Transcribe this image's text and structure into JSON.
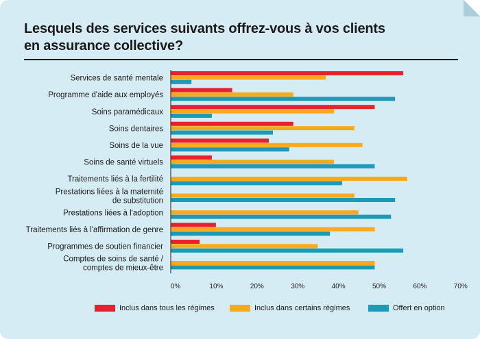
{
  "chart_data": {
    "type": "bar",
    "orientation": "horizontal",
    "title": "Lesquels des services suivants offrez-vous à vos clients en assurance collective?",
    "title_lines": [
      "Lesquels des services suivants offrez-vous à vos clients",
      "en assurance collective?"
    ],
    "categories": [
      [
        "Services de santé mentale"
      ],
      [
        "Programme d'aide aux employés"
      ],
      [
        "Soins paramédicaux"
      ],
      [
        "Soins dentaires"
      ],
      [
        "Soins de la vue"
      ],
      [
        "Soins de santé virtuels"
      ],
      [
        "Traitements liés à la fertilité"
      ],
      [
        "Prestations liées à la maternité",
        "de substitution"
      ],
      [
        "Prestations liées à l'adoption"
      ],
      [
        "Traitements liés à l'affirmation de genre"
      ],
      [
        "Programmes de soutien financier"
      ],
      [
        "Comptes de soins de santé /",
        "comptes de mieux-être"
      ]
    ],
    "series": [
      {
        "name": "Inclus dans tous les régimes",
        "color": "#e8212d",
        "values": [
          57,
          15,
          50,
          30,
          24,
          10,
          0,
          0,
          0,
          11,
          7,
          0
        ]
      },
      {
        "name": "Inclus dans certains régimes",
        "color": "#f9a91b",
        "values": [
          38,
          30,
          40,
          45,
          47,
          40,
          58,
          45,
          46,
          50,
          36,
          50
        ]
      },
      {
        "name": "Offert en option",
        "color": "#1b9bb5",
        "values": [
          5,
          55,
          10,
          25,
          29,
          50,
          42,
          55,
          54,
          39,
          57,
          50
        ]
      }
    ],
    "x_ticks": [
      "0%",
      "10%",
      "20%",
      "30%",
      "40%",
      "50%",
      "60%",
      "70%"
    ],
    "xlim": [
      0,
      70
    ],
    "grid": false,
    "legend_position": "bottom"
  }
}
